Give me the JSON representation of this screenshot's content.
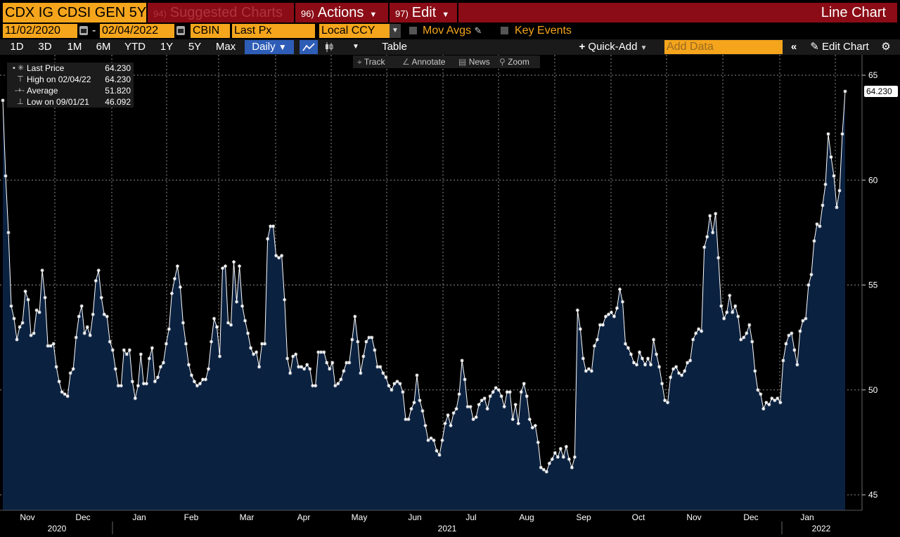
{
  "header": {
    "security": "CDX IG CDSI GEN 5Y",
    "suggested": {
      "num": "94)",
      "label": "Suggested Charts"
    },
    "actions": {
      "num": "96)",
      "label": "Actions"
    },
    "edit": {
      "num": "97)",
      "label": "Edit"
    },
    "title": "Line Chart"
  },
  "controls": {
    "start_date": "11/02/2020",
    "end_date": "02/04/2022",
    "date_sep": "-",
    "source": "CBIN",
    "field": "Last Px",
    "currency": "Local CCY",
    "mov_avgs": "Mov Avgs",
    "key_events": "Key Events"
  },
  "toolbar": {
    "periods": [
      "1D",
      "3D",
      "1M",
      "6M",
      "YTD",
      "1Y",
      "5Y",
      "Max"
    ],
    "frequency": "Daily",
    "table": "Table",
    "quick_add": "Quick-Add",
    "add_data_placeholder": "Add Data",
    "edit_chart": "Edit Chart"
  },
  "chart_tools": [
    "Track",
    "Annotate",
    "News",
    "Zoom"
  ],
  "legend": [
    {
      "label": "Last Price",
      "value": "64.230"
    },
    {
      "label": "High on 02/04/22",
      "value": "64.230"
    },
    {
      "label": "Average",
      "value": "51.820"
    },
    {
      "label": "Low on 09/01/21",
      "value": "46.092"
    }
  ],
  "colors": {
    "orange": "#f5a51c",
    "red": "#8b0c16",
    "fill": "#0b2140",
    "line": "#ffffff",
    "blue": "#2e5db7"
  },
  "chart_data": {
    "type": "area",
    "series_name": "Last Price",
    "last_label": "64.230",
    "ylim": [
      44.5,
      65.8
    ],
    "yticks": [
      45,
      50,
      55,
      60,
      65
    ],
    "grid": true,
    "months": [
      "Nov",
      "Dec",
      "Jan",
      "Feb",
      "Mar",
      "Apr",
      "May",
      "Jun",
      "Jul",
      "Aug",
      "Sep",
      "Oct",
      "Nov",
      "Dec",
      "Jan"
    ],
    "years": [
      "2020",
      "2021",
      "2022"
    ],
    "values": [
      63.8,
      60.2,
      57.5,
      54.0,
      53.4,
      52.4,
      53.0,
      53.2,
      54.7,
      54.3,
      52.6,
      52.7,
      53.8,
      53.7,
      55.7,
      54.4,
      52.1,
      52.1,
      52.2,
      51.1,
      50.4,
      49.9,
      49.8,
      49.7,
      50.8,
      51.0,
      52.5,
      53.5,
      54.0,
      52.7,
      53.0,
      52.6,
      53.6,
      55.2,
      55.7,
      54.4,
      53.6,
      53.5,
      52.3,
      51.9,
      51.0,
      50.2,
      50.2,
      51.9,
      51.7,
      51.9,
      50.4,
      49.6,
      50.2,
      51.7,
      50.3,
      50.3,
      51.5,
      52.0,
      50.4,
      50.6,
      51.1,
      51.3,
      52.2,
      52.9,
      54.6,
      55.3,
      55.9,
      54.9,
      53.2,
      52.2,
      51.2,
      50.7,
      50.4,
      50.2,
      50.3,
      50.5,
      50.5,
      51.0,
      52.3,
      53.4,
      53.0,
      51.6,
      55.8,
      55.9,
      53.2,
      53.1,
      56.1,
      54.2,
      55.9,
      54.0,
      53.3,
      52.7,
      52.0,
      51.7,
      51.8,
      51.1,
      52.2,
      52.2,
      57.2,
      57.8,
      57.8,
      56.4,
      56.3,
      56.4,
      54.3,
      51.5,
      50.8,
      51.6,
      51.7,
      51.1,
      51.1,
      51.0,
      51.2,
      51.0,
      50.2,
      50.2,
      51.8,
      51.8,
      51.8,
      51.3,
      51.0,
      51.3,
      50.2,
      50.3,
      50.5,
      50.9,
      51.3,
      51.3,
      52.4,
      53.5,
      52.3,
      50.8,
      51.6,
      52.3,
      52.5,
      52.5,
      51.9,
      51.1,
      51.1,
      50.8,
      50.6,
      50.2,
      50.0,
      50.3,
      50.4,
      50.3,
      49.9,
      48.6,
      48.6,
      49.1,
      49.4,
      50.7,
      49.5,
      49.0,
      48.3,
      47.6,
      47.7,
      47.6,
      47.1,
      46.9,
      47.6,
      48.4,
      48.8,
      48.3,
      48.9,
      49.1,
      49.8,
      51.4,
      50.5,
      49.2,
      49.2,
      48.6,
      48.7,
      49.3,
      49.5,
      49.6,
      49.1,
      49.7,
      49.9,
      50.1,
      50.0,
      49.7,
      49.2,
      49.9,
      49.9,
      48.6,
      49.3,
      48.4,
      49.9,
      50.3,
      49.7,
      48.6,
      48.2,
      48.3,
      47.5,
      46.3,
      46.2,
      46.1,
      46.5,
      46.7,
      47.0,
      46.8,
      47.2,
      46.8,
      47.3,
      46.7,
      46.3,
      46.8,
      53.8,
      52.9,
      51.5,
      50.9,
      51.0,
      50.9,
      52.1,
      52.4,
      53.1,
      53.1,
      53.5,
      53.6,
      53.7,
      53.5,
      53.9,
      54.8,
      54.2,
      52.2,
      52.0,
      51.7,
      51.3,
      51.2,
      51.8,
      51.5,
      51.2,
      51.5,
      51.2,
      52.4,
      51.7,
      51.1,
      50.3,
      49.5,
      49.4,
      50.6,
      51.0,
      51.1,
      50.8,
      50.7,
      50.9,
      51.3,
      51.4,
      52.4,
      52.7,
      52.9,
      52.8,
      56.8,
      57.3,
      58.3,
      57.5,
      58.4,
      56.3,
      54.0,
      53.4,
      53.7,
      54.5,
      53.7,
      54.0,
      53.5,
      52.4,
      52.5,
      52.7,
      53.1,
      52.3,
      50.9,
      50.0,
      49.8,
      49.1,
      49.4,
      49.3,
      49.6,
      49.5,
      49.6,
      49.4,
      51.4,
      52.2,
      52.6,
      52.7,
      51.9,
      51.2,
      52.8,
      53.3,
      53.4,
      55.0,
      55.5,
      57.1,
      57.9,
      57.8,
      58.8,
      59.8,
      62.2,
      61.1,
      60.2,
      58.7,
      59.5,
      62.2,
      64.23
    ]
  }
}
